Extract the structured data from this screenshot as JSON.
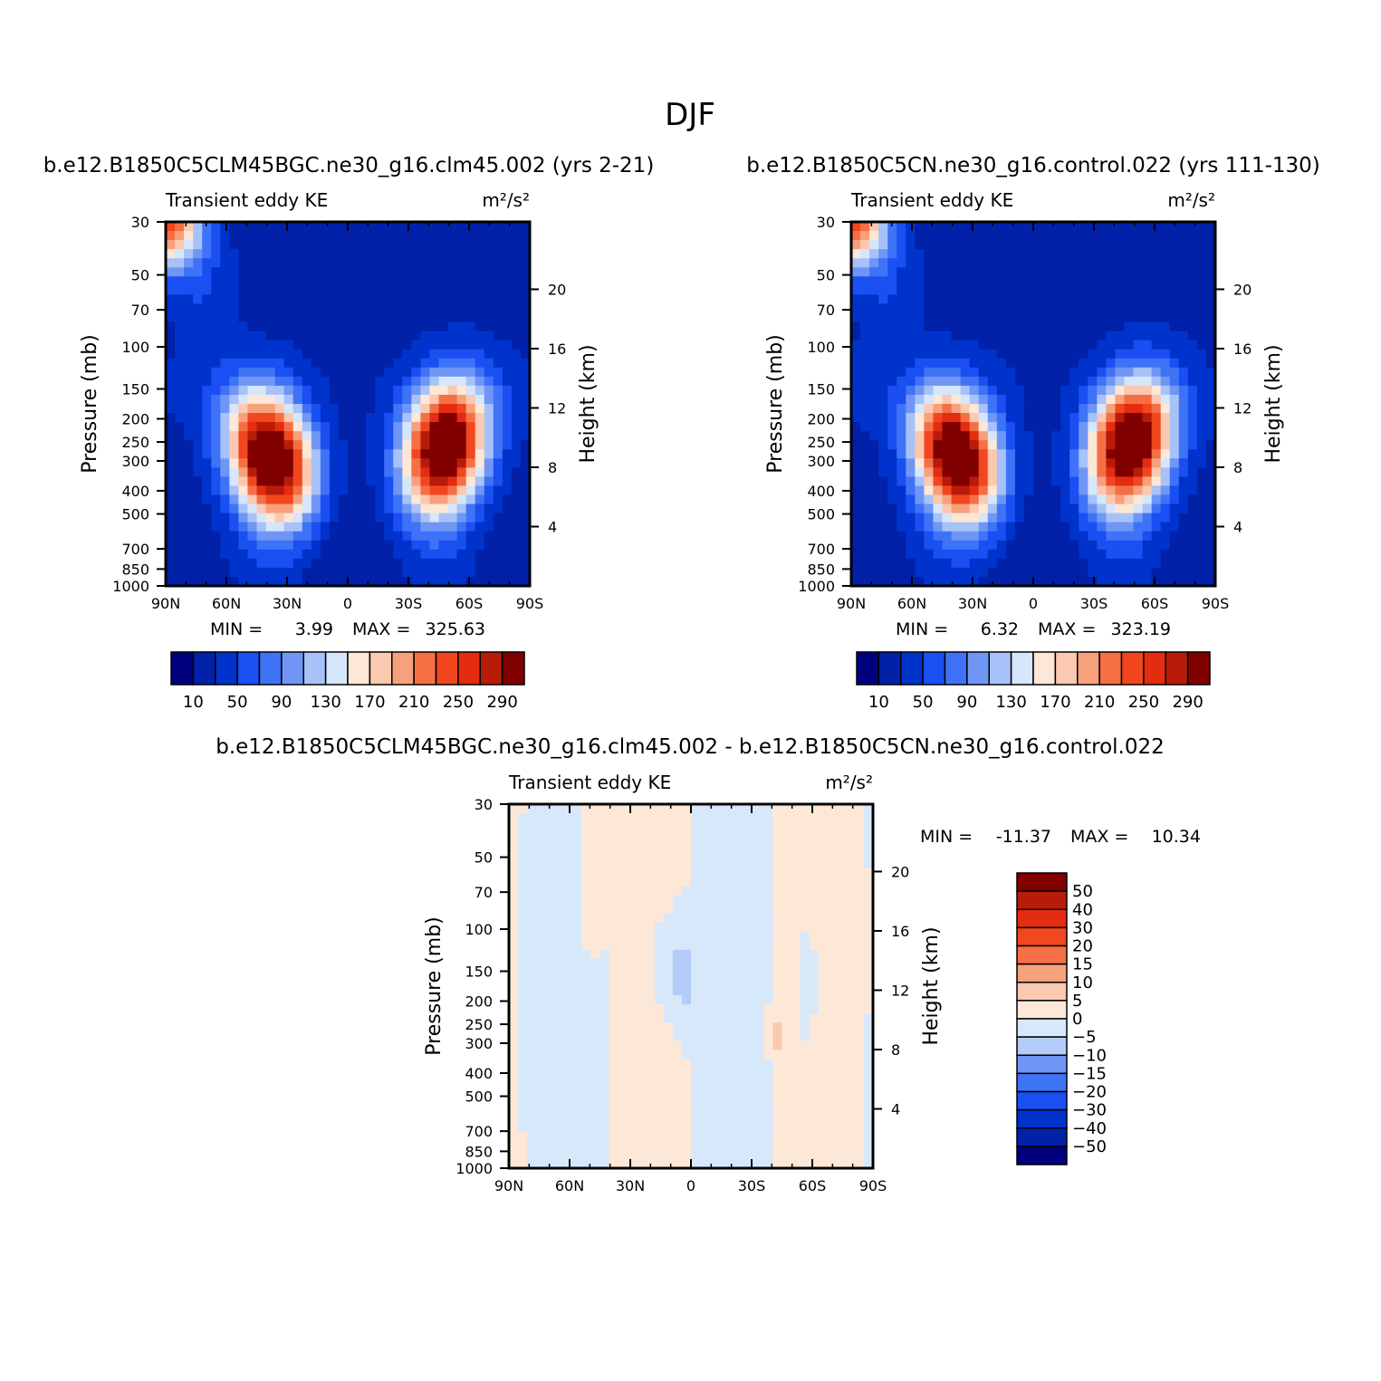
{
  "figure": {
    "title": "DJF"
  },
  "colors": {
    "abs_levels": [
      "#00007f",
      "#0021a8",
      "#0033cc",
      "#1a4ff2",
      "#3f73f7",
      "#6f96f5",
      "#a7c2f8",
      "#d6e6fb",
      "#fde7d6",
      "#fbc8b0",
      "#f7a07c",
      "#f56f45",
      "#f2461e",
      "#e42c10",
      "#b81c08",
      "#800000"
    ],
    "diff_levels": [
      "#00007f",
      "#0021a8",
      "#0033cc",
      "#1a4ff2",
      "#3f73f7",
      "#6f96f5",
      "#b3ccfa",
      "#d8e8fb",
      "#fde8d8",
      "#fbc8b0",
      "#f7a07c",
      "#f56f45",
      "#f2461e",
      "#e42c10",
      "#b81c08",
      "#800000"
    ]
  },
  "chart_data": [
    {
      "type": "heatmap",
      "title": "b.e12.B1850C5CLM45BGC.ne30_g16.clm45.002 (yrs 2-21)",
      "left_label": "Transient eddy KE",
      "units": "m²/s²",
      "ylabel": "Pressure (mb)",
      "y2label": "Height (km)",
      "x_ticks": [
        "90N",
        "60N",
        "30N",
        "0",
        "30S",
        "60S",
        "90S"
      ],
      "y_ticks": [
        "30",
        "50",
        "70",
        "100",
        "150",
        "200",
        "250",
        "300",
        "400",
        "500",
        "700",
        "850",
        "1000"
      ],
      "y2_ticks": [
        "20",
        "16",
        "12",
        "8",
        "4"
      ],
      "xlim": [
        90,
        -90
      ],
      "ylim": [
        1000,
        30
      ],
      "y_scale": "log",
      "min_label": "MIN =",
      "min_value": "3.99",
      "max_label": "MAX =",
      "max_value": "325.63",
      "colorbar_labels": [
        "10",
        "50",
        "90",
        "130",
        "170",
        "210",
        "250",
        "290"
      ],
      "levels": [
        10,
        30,
        50,
        70,
        90,
        110,
        130,
        150,
        170,
        190,
        210,
        230,
        250,
        270,
        290
      ],
      "jets": [
        {
          "lat": 38,
          "p": 290,
          "peak": 325
        },
        {
          "lat": -48,
          "p": 260,
          "peak": 322
        }
      ]
    },
    {
      "type": "heatmap",
      "title": "b.e12.B1850C5CN.ne30_g16.control.022 (yrs 111-130)",
      "left_label": "Transient eddy KE",
      "units": "m²/s²",
      "ylabel": "Pressure (mb)",
      "y2label": "Height (km)",
      "x_ticks": [
        "90N",
        "60N",
        "30N",
        "0",
        "30S",
        "60S",
        "90S"
      ],
      "y_ticks": [
        "30",
        "50",
        "70",
        "100",
        "150",
        "200",
        "250",
        "300",
        "400",
        "500",
        "700",
        "850",
        "1000"
      ],
      "y2_ticks": [
        "20",
        "16",
        "12",
        "8",
        "4"
      ],
      "xlim": [
        90,
        -90
      ],
      "ylim": [
        1000,
        30
      ],
      "y_scale": "log",
      "min_label": "MIN =",
      "min_value": "6.32",
      "max_label": "MAX =",
      "max_value": "323.19",
      "colorbar_labels": [
        "10",
        "50",
        "90",
        "130",
        "170",
        "210",
        "250",
        "290"
      ],
      "levels": [
        10,
        30,
        50,
        70,
        90,
        110,
        130,
        150,
        170,
        190,
        210,
        230,
        250,
        270,
        290
      ],
      "jets": [
        {
          "lat": 38,
          "p": 285,
          "peak": 322
        },
        {
          "lat": -48,
          "p": 255,
          "peak": 320
        }
      ]
    },
    {
      "type": "heatmap",
      "title": "b.e12.B1850C5CLM45BGC.ne30_g16.clm45.002 - b.e12.B1850C5CN.ne30_g16.control.022",
      "left_label": "Transient eddy KE",
      "units": "m²/s²",
      "ylabel": "Pressure (mb)",
      "y2label": "Height (km)",
      "x_ticks": [
        "90N",
        "60N",
        "30N",
        "0",
        "30S",
        "60S",
        "90S"
      ],
      "y_ticks": [
        "30",
        "50",
        "70",
        "100",
        "150",
        "200",
        "250",
        "300",
        "400",
        "500",
        "700",
        "850",
        "1000"
      ],
      "y2_ticks": [
        "20",
        "16",
        "12",
        "8",
        "4"
      ],
      "xlim": [
        90,
        -90
      ],
      "ylim": [
        1000,
        30
      ],
      "y_scale": "log",
      "min_label": "MIN =",
      "min_value": "-11.37",
      "max_label": "MAX =",
      "max_value": "10.34",
      "colorbar_labels": [
        "50",
        "40",
        "30",
        "20",
        "15",
        "10",
        "5",
        "0",
        "-5",
        "-10",
        "-15",
        "-20",
        "-30",
        "-40",
        "-50"
      ],
      "levels": [
        -50,
        -40,
        -30,
        -20,
        -15,
        -10,
        -5,
        0,
        5,
        10,
        15,
        20,
        30,
        40,
        50
      ]
    }
  ]
}
